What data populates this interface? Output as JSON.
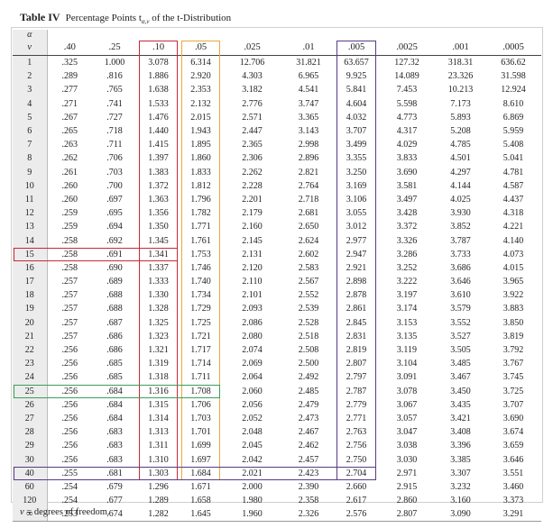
{
  "title": {
    "label": "Table IV",
    "text": "Percentage Points t",
    "subscript": "α,ν",
    "suffix": " of the t-Distribution"
  },
  "corner": {
    "alpha": "α",
    "nu": "ν"
  },
  "columns": [
    ".40",
    ".25",
    ".10",
    ".05",
    ".025",
    ".01",
    ".005",
    ".0025",
    ".001",
    ".0005"
  ],
  "rows": [
    {
      "df": "1",
      "v": [
        ".325",
        "1.000",
        "3.078",
        "6.314",
        "12.706",
        "31.821",
        "63.657",
        "127.32",
        "318.31",
        "636.62"
      ]
    },
    {
      "df": "2",
      "v": [
        ".289",
        ".816",
        "1.886",
        "2.920",
        "4.303",
        "6.965",
        "9.925",
        "14.089",
        "23.326",
        "31.598"
      ]
    },
    {
      "df": "3",
      "v": [
        ".277",
        ".765",
        "1.638",
        "2.353",
        "3.182",
        "4.541",
        "5.841",
        "7.453",
        "10.213",
        "12.924"
      ]
    },
    {
      "df": "4",
      "v": [
        ".271",
        ".741",
        "1.533",
        "2.132",
        "2.776",
        "3.747",
        "4.604",
        "5.598",
        "7.173",
        "8.610"
      ]
    },
    {
      "df": "5",
      "v": [
        ".267",
        ".727",
        "1.476",
        "2.015",
        "2.571",
        "3.365",
        "4.032",
        "4.773",
        "5.893",
        "6.869"
      ]
    },
    {
      "df": "6",
      "v": [
        ".265",
        ".718",
        "1.440",
        "1.943",
        "2.447",
        "3.143",
        "3.707",
        "4.317",
        "5.208",
        "5.959"
      ]
    },
    {
      "df": "7",
      "v": [
        ".263",
        ".711",
        "1.415",
        "1.895",
        "2.365",
        "2.998",
        "3.499",
        "4.029",
        "4.785",
        "5.408"
      ]
    },
    {
      "df": "8",
      "v": [
        ".262",
        ".706",
        "1.397",
        "1.860",
        "2.306",
        "2.896",
        "3.355",
        "3.833",
        "4.501",
        "5.041"
      ]
    },
    {
      "df": "9",
      "v": [
        ".261",
        ".703",
        "1.383",
        "1.833",
        "2.262",
        "2.821",
        "3.250",
        "3.690",
        "4.297",
        "4.781"
      ]
    },
    {
      "df": "10",
      "v": [
        ".260",
        ".700",
        "1.372",
        "1.812",
        "2.228",
        "2.764",
        "3.169",
        "3.581",
        "4.144",
        "4.587"
      ]
    },
    {
      "df": "11",
      "v": [
        ".260",
        ".697",
        "1.363",
        "1.796",
        "2.201",
        "2.718",
        "3.106",
        "3.497",
        "4.025",
        "4.437"
      ]
    },
    {
      "df": "12",
      "v": [
        ".259",
        ".695",
        "1.356",
        "1.782",
        "2.179",
        "2.681",
        "3.055",
        "3.428",
        "3.930",
        "4.318"
      ]
    },
    {
      "df": "13",
      "v": [
        ".259",
        ".694",
        "1.350",
        "1.771",
        "2.160",
        "2.650",
        "3.012",
        "3.372",
        "3.852",
        "4.221"
      ]
    },
    {
      "df": "14",
      "v": [
        ".258",
        ".692",
        "1.345",
        "1.761",
        "2.145",
        "2.624",
        "2.977",
        "3.326",
        "3.787",
        "4.140"
      ]
    },
    {
      "df": "15",
      "v": [
        ".258",
        ".691",
        "1.341",
        "1.753",
        "2.131",
        "2.602",
        "2.947",
        "3.286",
        "3.733",
        "4.073"
      ]
    },
    {
      "df": "16",
      "v": [
        ".258",
        ".690",
        "1.337",
        "1.746",
        "2.120",
        "2.583",
        "2.921",
        "3.252",
        "3.686",
        "4.015"
      ]
    },
    {
      "df": "17",
      "v": [
        ".257",
        ".689",
        "1.333",
        "1.740",
        "2.110",
        "2.567",
        "2.898",
        "3.222",
        "3.646",
        "3.965"
      ]
    },
    {
      "df": "18",
      "v": [
        ".257",
        ".688",
        "1.330",
        "1.734",
        "2.101",
        "2.552",
        "2.878",
        "3.197",
        "3.610",
        "3.922"
      ]
    },
    {
      "df": "19",
      "v": [
        ".257",
        ".688",
        "1.328",
        "1.729",
        "2.093",
        "2.539",
        "2.861",
        "3.174",
        "3.579",
        "3.883"
      ]
    },
    {
      "df": "20",
      "v": [
        ".257",
        ".687",
        "1.325",
        "1.725",
        "2.086",
        "2.528",
        "2.845",
        "3.153",
        "3.552",
        "3.850"
      ]
    },
    {
      "df": "21",
      "v": [
        ".257",
        ".686",
        "1.323",
        "1.721",
        "2.080",
        "2.518",
        "2.831",
        "3.135",
        "3.527",
        "3.819"
      ]
    },
    {
      "df": "22",
      "v": [
        ".256",
        ".686",
        "1.321",
        "1.717",
        "2.074",
        "2.508",
        "2.819",
        "3.119",
        "3.505",
        "3.792"
      ]
    },
    {
      "df": "23",
      "v": [
        ".256",
        ".685",
        "1.319",
        "1.714",
        "2.069",
        "2.500",
        "2.807",
        "3.104",
        "3.485",
        "3.767"
      ]
    },
    {
      "df": "24",
      "v": [
        ".256",
        ".685",
        "1.318",
        "1.711",
        "2.064",
        "2.492",
        "2.797",
        "3.091",
        "3.467",
        "3.745"
      ]
    },
    {
      "df": "25",
      "v": [
        ".256",
        ".684",
        "1.316",
        "1.708",
        "2.060",
        "2.485",
        "2.787",
        "3.078",
        "3.450",
        "3.725"
      ]
    },
    {
      "df": "26",
      "v": [
        ".256",
        ".684",
        "1.315",
        "1.706",
        "2.056",
        "2.479",
        "2.779",
        "3.067",
        "3.435",
        "3.707"
      ]
    },
    {
      "df": "27",
      "v": [
        ".256",
        ".684",
        "1.314",
        "1.703",
        "2.052",
        "2.473",
        "2.771",
        "3.057",
        "3.421",
        "3.690"
      ]
    },
    {
      "df": "28",
      "v": [
        ".256",
        ".683",
        "1.313",
        "1.701",
        "2.048",
        "2.467",
        "2.763",
        "3.047",
        "3.408",
        "3.674"
      ]
    },
    {
      "df": "29",
      "v": [
        ".256",
        ".683",
        "1.311",
        "1.699",
        "2.045",
        "2.462",
        "2.756",
        "3.038",
        "3.396",
        "3.659"
      ]
    },
    {
      "df": "30",
      "v": [
        ".256",
        ".683",
        "1.310",
        "1.697",
        "2.042",
        "2.457",
        "2.750",
        "3.030",
        "3.385",
        "3.646"
      ]
    },
    {
      "df": "40",
      "v": [
        ".255",
        ".681",
        "1.303",
        "1.684",
        "2.021",
        "2.423",
        "2.704",
        "2.971",
        "3.307",
        "3.551"
      ]
    },
    {
      "df": "60",
      "v": [
        ".254",
        ".679",
        "1.296",
        "1.671",
        "2.000",
        "2.390",
        "2.660",
        "2.915",
        "3.232",
        "3.460"
      ]
    },
    {
      "df": "120",
      "v": [
        ".254",
        ".677",
        "1.289",
        "1.658",
        "1.980",
        "2.358",
        "2.617",
        "2.860",
        "3.160",
        "3.373"
      ]
    },
    {
      "df": "∞",
      "v": [
        ".253",
        ".674",
        "1.282",
        "1.645",
        "1.960",
        "2.326",
        "2.576",
        "2.807",
        "3.090",
        "3.291"
      ]
    }
  ],
  "footer": {
    "nu": "ν",
    "text": " = degrees of freedom."
  },
  "highlight_colors": {
    "red": "#c8283a",
    "orange": "#e8a83a",
    "purple": "#5a3a86",
    "green": "#3aa05a"
  }
}
